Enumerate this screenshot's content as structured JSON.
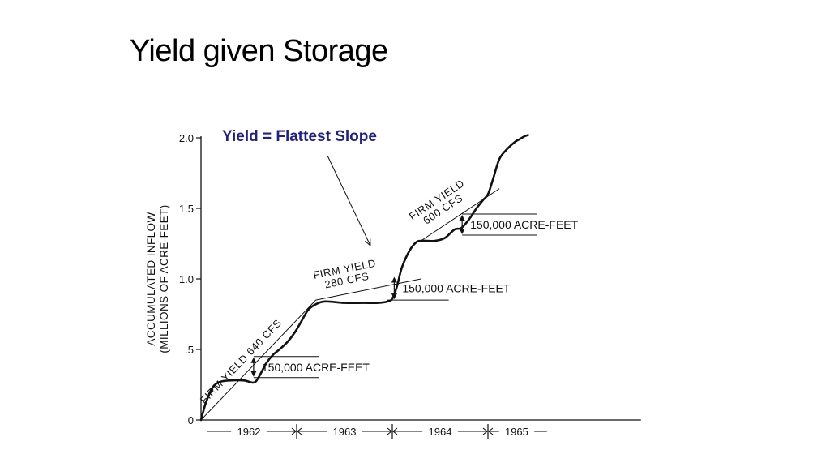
{
  "slide": {
    "title": "Yield given Storage"
  },
  "annotation": {
    "text": "Yield = Flattest Slope",
    "color": "#1f1f8f"
  },
  "chart_data": {
    "type": "line",
    "ylabel_line1": "ACCUMULATED INFLOW",
    "ylabel_line2": "(MILLIONS OF ACRE-FEET)",
    "ylim": [
      0,
      2.0
    ],
    "xlim": [
      0,
      4.6
    ],
    "y_ticks": [
      {
        "value": 0,
        "label": "0"
      },
      {
        "value": 0.5,
        "label": ".5"
      },
      {
        "value": 1.0,
        "label": "1.0"
      },
      {
        "value": 1.5,
        "label": "1.5"
      },
      {
        "value": 2.0,
        "label": "2.0"
      }
    ],
    "x_periods": [
      {
        "label": "1962",
        "start": 0,
        "end": 1
      },
      {
        "label": "1963",
        "start": 1,
        "end": 2
      },
      {
        "label": "1964",
        "start": 2,
        "end": 3
      },
      {
        "label": "1965",
        "start": 3,
        "end": 3.6
      }
    ],
    "series": [
      {
        "x": [
          0,
          0.05,
          0.12,
          0.2,
          0.3,
          0.45,
          0.55,
          0.6,
          0.68,
          0.75,
          0.82,
          0.9,
          0.98,
          1.05,
          1.12,
          1.2,
          1.3,
          1.5,
          1.7,
          1.85,
          1.95,
          2.0,
          2.05,
          2.1,
          2.18,
          2.25,
          2.3,
          2.36,
          2.45,
          2.55,
          2.65,
          2.72,
          2.8,
          2.88,
          2.95,
          3.0,
          3.05,
          3.12,
          3.2,
          3.28,
          3.33,
          3.38,
          3.42
        ],
        "y": [
          0,
          0.12,
          0.23,
          0.27,
          0.28,
          0.28,
          0.265,
          0.3,
          0.4,
          0.46,
          0.5,
          0.55,
          0.62,
          0.7,
          0.78,
          0.82,
          0.84,
          0.83,
          0.83,
          0.83,
          0.84,
          0.86,
          0.95,
          1.08,
          1.2,
          1.26,
          1.27,
          1.27,
          1.27,
          1.29,
          1.35,
          1.36,
          1.42,
          1.5,
          1.56,
          1.6,
          1.7,
          1.85,
          1.92,
          1.97,
          1.99,
          2.01,
          2.02
        ]
      }
    ],
    "yield_lines": [
      {
        "label_line1": "FIRM YIELD 640 CFS",
        "label_line2": "",
        "from": [
          0.0,
          0.0
        ],
        "to": [
          1.2,
          0.85
        ]
      },
      {
        "label_line1": "FIRM YIELD",
        "label_line2": "280 CFS",
        "from": [
          1.2,
          0.85
        ],
        "to": [
          2.3,
          1.0
        ]
      },
      {
        "label_line1": "FIRM YIELD",
        "label_line2": "600 CFS",
        "from": [
          2.3,
          1.27
        ],
        "to": [
          3.12,
          1.64
        ]
      }
    ],
    "storage_notes": [
      {
        "label": "150,000 ACRE-FEET",
        "top": 0.45,
        "bottom": 0.3,
        "x_arrow": 0.55,
        "x_from": 0.55,
        "x_to": 1.23
      },
      {
        "label": "150,000 ACRE-FEET",
        "top": 1.02,
        "bottom": 0.85,
        "x_arrow": 2.02,
        "x_from": 1.95,
        "x_to": 2.59
      },
      {
        "label": "150,000 ACRE-FEET",
        "top": 1.46,
        "bottom": 1.31,
        "x_arrow": 2.73,
        "x_from": 2.73,
        "x_to": 3.51
      }
    ]
  }
}
